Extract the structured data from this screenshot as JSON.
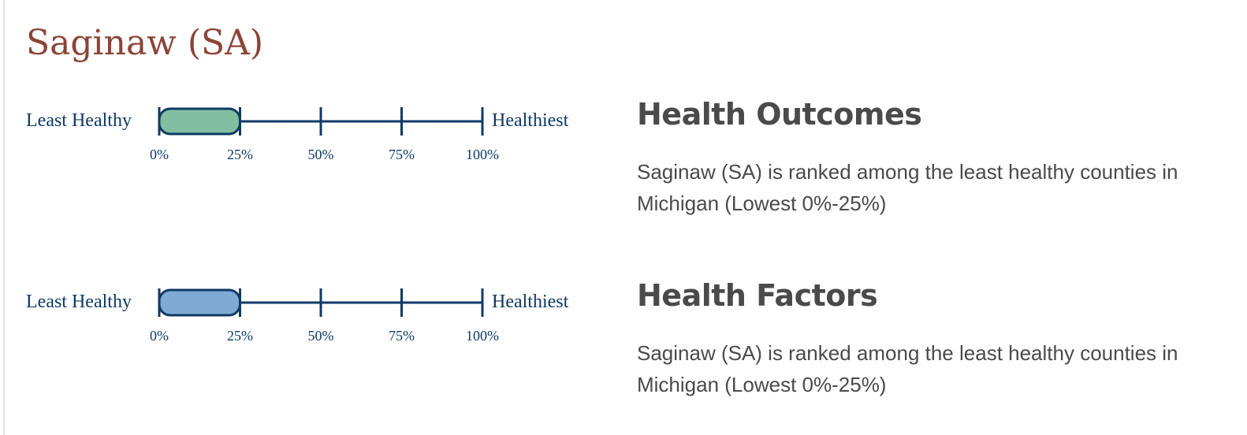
{
  "county": {
    "title": "Saginaw (SA)"
  },
  "scale": {
    "least_label": "Least Healthy",
    "most_label": "Healthiest",
    "ticks": [
      "0%",
      "25%",
      "50%",
      "75%",
      "100%"
    ]
  },
  "sections": [
    {
      "heading": "Health Outcomes",
      "description": "Saginaw (SA) is ranked among the least healthy counties in Michigan (Lowest 0%-25%)",
      "range": [
        0,
        25
      ],
      "fill_color": "#82bfa0"
    },
    {
      "heading": "Health Factors",
      "description": "Saginaw (SA) is ranked among the least healthy counties in Michigan (Lowest 0%-25%)",
      "range": [
        0,
        25
      ],
      "fill_color": "#80aad6"
    }
  ],
  "colors": {
    "title": "#8b4436",
    "scale_line": "#0f3a66",
    "text": "#4a4a4a"
  }
}
